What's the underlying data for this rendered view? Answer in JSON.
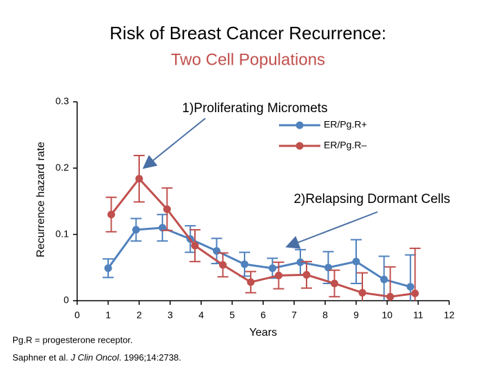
{
  "chart_data": {
    "type": "line",
    "title": "Risk of Breast Cancer Recurrence:",
    "subtitle": "Two Cell Populations",
    "y_label": "Recurrence hazard rate",
    "x_label": "Years",
    "annotations": [
      "1)Proliferating Micromets",
      "2)Relapsing Dormant Cells"
    ],
    "footnotes": [
      "Pg.R = progesterone receptor.",
      "Saphner et al.",
      "J Clin Oncol",
      ". 1996;14:2738."
    ],
    "xlim": [
      0,
      12
    ],
    "xticks": [
      0,
      1,
      2,
      3,
      4,
      5,
      6,
      7,
      8,
      9,
      10,
      11,
      12
    ],
    "ylim": [
      0,
      0.3
    ],
    "yticks": [
      0,
      0.1,
      0.2,
      0.3
    ],
    "legend": "upper right",
    "series": [
      {
        "name": "ER/Pg.R+",
        "color": "#4f81bd",
        "x": [
          1,
          1.9,
          2.75,
          3.65,
          4.5,
          5.4,
          6.3,
          7.2,
          8.1,
          9.0,
          9.9,
          10.75
        ],
        "values": [
          0.049,
          0.107,
          0.11,
          0.093,
          0.075,
          0.055,
          0.049,
          0.058,
          0.05,
          0.059,
          0.032,
          0.021
        ],
        "errors": [
          0.014,
          0.017,
          0.02,
          0.02,
          0.019,
          0.018,
          0.015,
          0.019,
          0.024,
          0.033,
          0.035,
          0.048
        ]
      },
      {
        "name": "ER/Pg.R–",
        "color": "#c0504d",
        "x": [
          1.1,
          2.0,
          2.9,
          3.8,
          4.7,
          5.6,
          6.5,
          7.4,
          8.3,
          9.2,
          10.1,
          10.9
        ],
        "values": [
          0.13,
          0.184,
          0.138,
          0.083,
          0.054,
          0.028,
          0.038,
          0.039,
          0.026,
          0.012,
          0.006,
          0.011
        ],
        "errors": [
          0.026,
          0.035,
          0.032,
          0.024,
          0.018,
          0.016,
          0.02,
          0.02,
          0.02,
          0.03,
          0.045,
          0.068
        ]
      }
    ]
  }
}
